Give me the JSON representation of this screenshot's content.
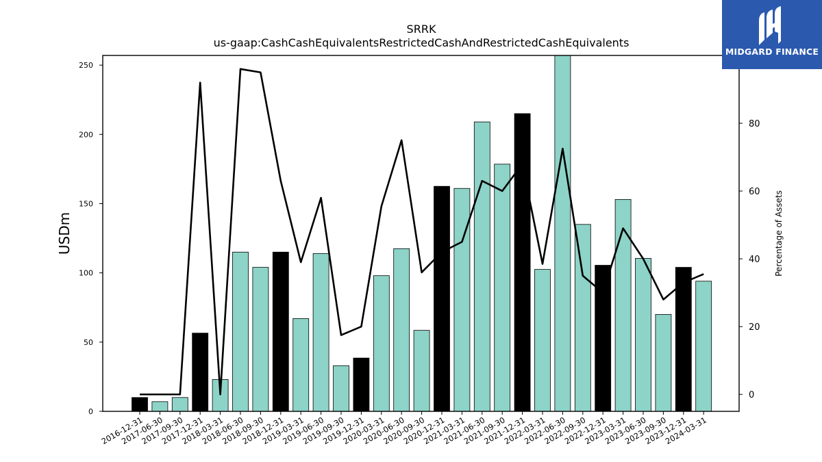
{
  "chart_data": {
    "type": "bar",
    "title": "SRRK",
    "subtitle": "us-gaap:CashCashEquivalentsRestrictedCashAndRestrictedCashEquivalents",
    "ylabel": "USDm",
    "y2label": "Percentage of Assets",
    "ylim": [
      0,
      257
    ],
    "y2lim": [
      -5,
      100
    ],
    "yticks": [
      0,
      50,
      100,
      150,
      200,
      250
    ],
    "y2ticks": [
      0,
      20,
      40,
      60,
      80
    ],
    "categories": [
      "2016-12-31",
      "2017-06-30",
      "2017-09-30",
      "2017-12-31",
      "2018-03-31",
      "2018-06-30",
      "2018-09-30",
      "2018-12-31",
      "2019-03-31",
      "2019-06-30",
      "2019-09-30",
      "2019-12-31",
      "2020-03-31",
      "2020-06-30",
      "2020-09-30",
      "2020-12-31",
      "2021-03-31",
      "2021-06-30",
      "2021-09-30",
      "2021-12-31",
      "2022-03-31",
      "2022-06-30",
      "2022-09-30",
      "2022-12-31",
      "2023-03-31",
      "2023-06-30",
      "2023-09-30",
      "2023-12-31",
      "2024-03-31"
    ],
    "series": [
      {
        "type": "bar",
        "values": [
          10,
          7,
          10,
          56.5,
          23,
          115,
          104,
          115,
          67,
          114,
          33,
          38.5,
          98,
          117.5,
          58.5,
          162.5,
          161,
          209,
          178.5,
          215,
          102.5,
          258,
          135,
          105.5,
          153,
          110.5,
          70,
          104,
          94
        ],
        "annual": [
          true,
          false,
          false,
          true,
          false,
          false,
          false,
          true,
          false,
          false,
          false,
          true,
          false,
          false,
          false,
          true,
          false,
          false,
          false,
          true,
          false,
          false,
          false,
          true,
          false,
          false,
          false,
          true,
          false
        ]
      },
      {
        "type": "line",
        "axis": "right",
        "values": [
          0,
          0,
          0,
          92,
          0,
          96,
          95,
          63,
          39,
          58,
          17.5,
          20,
          55.5,
          75,
          36,
          42,
          45,
          63,
          60,
          68,
          38.5,
          72.5,
          35,
          30,
          49,
          40,
          28,
          33,
          35.5
        ]
      }
    ],
    "colors": {
      "annual_bar": "#000000",
      "quarter_bar": "#8dd3c7",
      "line": "#000000"
    }
  },
  "logo": {
    "text": "MIDGARD FINANCE",
    "background": "#2b59ae"
  }
}
